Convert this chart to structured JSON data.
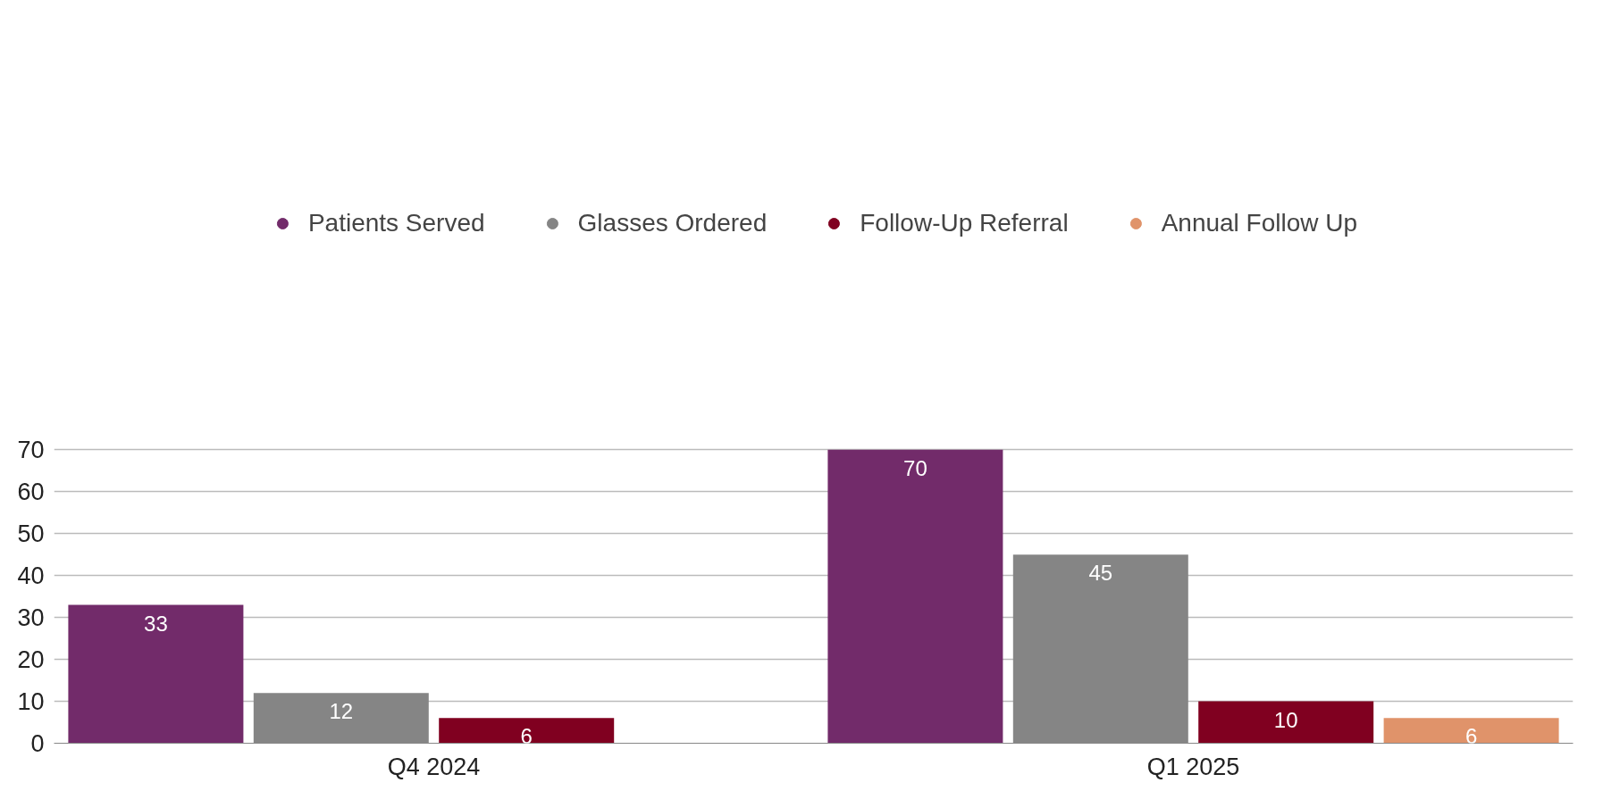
{
  "chart_data": {
    "type": "bar",
    "categories": [
      "Q4 2024",
      "Q1 2025"
    ],
    "series": [
      {
        "name": "Patients Served",
        "color": "#722b6a",
        "values": [
          33,
          70
        ]
      },
      {
        "name": "Glasses Ordered",
        "color": "#858585",
        "values": [
          12,
          45
        ]
      },
      {
        "name": "Follow-Up Referral",
        "color": "#800020",
        "values": [
          6,
          10
        ]
      },
      {
        "name": "Annual Follow Up",
        "color": "#e0936a",
        "values": [
          null,
          6
        ]
      }
    ],
    "ylim": [
      0,
      70
    ],
    "yticks": [
      0,
      10,
      20,
      30,
      40,
      50,
      60,
      70
    ],
    "grid": "y",
    "legend": "top",
    "data_labels": true
  }
}
